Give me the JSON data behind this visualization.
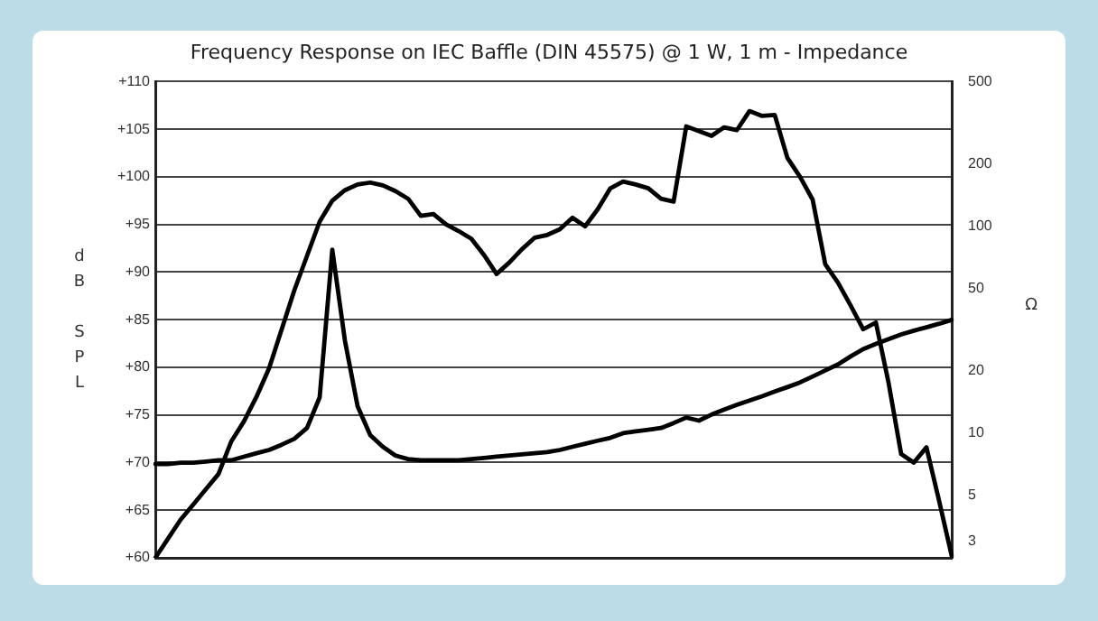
{
  "chart_data": {
    "type": "line",
    "title": "Frequency Response on IEC Baffle (DIN 45575) @ 1 W, 1 m - Impedance",
    "ylabel": "dB SPL",
    "y2label": "Ω",
    "categories": [
      null,
      null,
      null,
      null,
      null,
      null,
      null,
      null,
      null,
      null,
      null,
      null,
      null,
      null,
      null,
      null,
      null,
      null,
      null,
      null,
      null,
      null,
      null,
      null,
      null,
      null,
      null,
      null,
      null,
      null,
      null,
      null,
      null,
      null,
      null,
      null,
      null,
      null,
      null,
      null,
      null,
      null,
      null,
      null,
      null,
      null,
      null,
      null,
      null,
      null,
      null,
      null,
      null,
      null,
      null,
      null,
      null,
      null,
      null,
      null,
      null,
      null,
      null,
      null
    ],
    "series": [
      {
        "color": "#000000",
        "values": [
          60,
          62,
          64,
          65.6,
          67.2,
          68.8,
          72.2,
          74.3,
          76.9,
          79.9,
          84,
          88.1,
          91.7,
          95.3,
          97.5,
          98.6,
          99.2,
          99.4,
          99.1,
          98.5,
          97.7,
          95.9,
          96.1,
          95,
          94.3,
          93.5,
          91.8,
          89.8,
          91,
          92.4,
          93.6,
          93.9,
          94.5,
          95.7,
          94.8,
          96.6,
          98.8,
          99.5,
          99.2,
          98.8,
          97.7,
          97.4,
          105.3,
          104.8,
          104.3,
          105.2,
          104.9,
          106.9,
          106.4,
          106.5,
          102,
          100,
          97.6,
          90.8,
          88.9,
          86.5,
          84,
          84.7,
          78.4,
          70.9,
          70,
          71.6,
          66,
          60.2
        ]
      },
      {
        "color": "#000000",
        "axis": "y2",
        "values": [
          7.1,
          7.1,
          7.2,
          7.2,
          7.3,
          7.4,
          7.4,
          7.7,
          8,
          8.3,
          8.8,
          9.4,
          10.6,
          14.9,
          77,
          28,
          13.5,
          9.8,
          8.6,
          7.8,
          7.5,
          7.4,
          7.4,
          7.4,
          7.4,
          7.5,
          7.6,
          7.7,
          7.8,
          7.9,
          8,
          8.1,
          8.3,
          8.6,
          8.9,
          9.2,
          9.5,
          10,
          10.2,
          10.4,
          10.6,
          11.2,
          11.9,
          11.5,
          12.3,
          13,
          13.7,
          14.4,
          15.1,
          15.9,
          16.7,
          17.6,
          18.8,
          20.1,
          21.5,
          23.5,
          25.5,
          27,
          28.5,
          30,
          31.3,
          32.5,
          33.8,
          35.3
        ]
      }
    ],
    "ylim": [
      60,
      110
    ],
    "yticks": [
      {
        "value": 60,
        "label": "+60"
      },
      {
        "value": 65,
        "label": "+65"
      },
      {
        "value": 70,
        "label": "+70"
      },
      {
        "value": 75,
        "label": "+75"
      },
      {
        "value": 80,
        "label": "+80"
      },
      {
        "value": 85,
        "label": "+85"
      },
      {
        "value": 90,
        "label": "+90"
      },
      {
        "value": 95,
        "label": "+95"
      },
      {
        "value": 100,
        "label": "+100"
      },
      {
        "value": 105,
        "label": "+105"
      },
      {
        "value": 110,
        "label": "+110"
      }
    ],
    "y2lim": [
      2.5,
      500
    ],
    "y2ticks": [
      3,
      5,
      10,
      20,
      50,
      100,
      200,
      500
    ],
    "log": "y2",
    "grid": "y",
    "tick_labels": "y",
    "legend": false,
    "marker": "none",
    "line_style": "solid"
  }
}
